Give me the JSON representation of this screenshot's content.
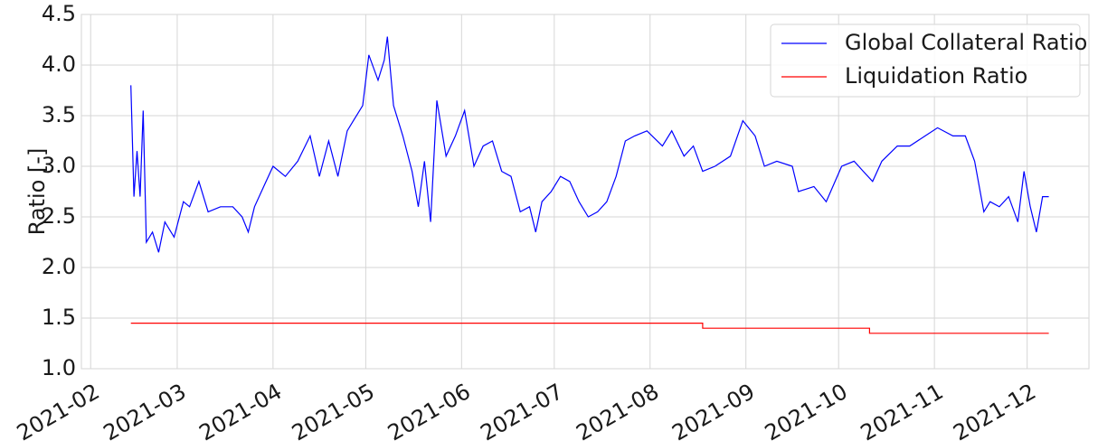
{
  "chart_data": {
    "type": "line",
    "ylabel": "Ratio [-]",
    "xlim": [
      "2021-01-29",
      "2021-12-21"
    ],
    "xticks": [
      "2021-02",
      "2021-03",
      "2021-04",
      "2021-05",
      "2021-06",
      "2021-07",
      "2021-08",
      "2021-09",
      "2021-10",
      "2021-11",
      "2021-12"
    ],
    "ylim": [
      1,
      4.5
    ],
    "yticks": [
      {
        "value": 1,
        "label": "1.0"
      },
      1.5,
      {
        "value": 2,
        "label": "2.0"
      },
      2.5,
      {
        "value": 3,
        "label": "3.0"
      },
      3.5,
      {
        "value": 4,
        "label": "4.0"
      },
      4.5
    ],
    "grid": true,
    "legend": "upper right",
    "series": [
      {
        "name": "Global Collateral Ratio",
        "color": "#0000ff",
        "x": [
          "2021-02-14",
          "2021-02-15",
          "2021-02-16",
          "2021-02-17",
          "2021-02-18",
          "2021-02-19",
          "2021-02-21",
          "2021-02-23",
          "2021-02-25",
          "2021-02-28",
          "2021-03-03",
          "2021-03-05",
          "2021-03-08",
          "2021-03-11",
          "2021-03-15",
          "2021-03-19",
          "2021-03-22",
          "2021-03-24",
          "2021-03-26",
          "2021-03-29",
          "2021-04-01",
          "2021-04-05",
          "2021-04-09",
          "2021-04-13",
          "2021-04-16",
          "2021-04-19",
          "2021-04-22",
          "2021-04-25",
          "2021-04-27",
          "2021-04-30",
          "2021-05-02",
          "2021-05-05",
          "2021-05-07",
          "2021-05-08",
          "2021-05-10",
          "2021-05-13",
          "2021-05-16",
          "2021-05-18",
          "2021-05-20",
          "2021-05-22",
          "2021-05-24",
          "2021-05-27",
          "2021-05-30",
          "2021-06-02",
          "2021-06-05",
          "2021-06-08",
          "2021-06-11",
          "2021-06-14",
          "2021-06-17",
          "2021-06-20",
          "2021-06-23",
          "2021-06-25",
          "2021-06-27",
          "2021-06-30",
          "2021-07-03",
          "2021-07-06",
          "2021-07-09",
          "2021-07-12",
          "2021-07-15",
          "2021-07-18",
          "2021-07-21",
          "2021-07-24",
          "2021-07-27",
          "2021-07-31",
          "2021-08-05",
          "2021-08-08",
          "2021-08-12",
          "2021-08-15",
          "2021-08-18",
          "2021-08-22",
          "2021-08-27",
          "2021-08-31",
          "2021-09-04",
          "2021-09-07",
          "2021-09-11",
          "2021-09-16",
          "2021-09-18",
          "2021-09-23",
          "2021-09-27",
          "2021-10-02",
          "2021-10-06",
          "2021-10-09",
          "2021-10-12",
          "2021-10-15",
          "2021-10-20",
          "2021-10-24",
          "2021-10-29",
          "2021-11-02",
          "2021-11-07",
          "2021-11-11",
          "2021-11-14",
          "2021-11-17",
          "2021-11-19",
          "2021-11-22",
          "2021-11-25",
          "2021-11-28",
          "2021-11-30",
          "2021-12-02",
          "2021-12-04",
          "2021-12-06",
          "2021-12-08"
        ],
        "values": [
          3.8,
          2.7,
          3.15,
          2.7,
          3.55,
          2.25,
          2.35,
          2.15,
          2.45,
          2.3,
          2.65,
          2.6,
          2.85,
          2.55,
          2.6,
          2.6,
          2.5,
          2.35,
          2.6,
          2.8,
          3.0,
          2.9,
          3.05,
          3.3,
          2.9,
          3.25,
          2.9,
          3.35,
          3.45,
          3.6,
          4.1,
          3.85,
          4.05,
          4.28,
          3.6,
          3.3,
          2.95,
          2.6,
          3.05,
          2.45,
          3.65,
          3.1,
          3.3,
          3.55,
          3.0,
          3.2,
          3.25,
          2.95,
          2.9,
          2.55,
          2.6,
          2.35,
          2.65,
          2.75,
          2.9,
          2.85,
          2.65,
          2.5,
          2.55,
          2.65,
          2.9,
          3.25,
          3.3,
          3.35,
          3.2,
          3.35,
          3.1,
          3.2,
          2.95,
          3.0,
          3.1,
          3.45,
          3.3,
          3.0,
          3.05,
          3.0,
          2.75,
          2.8,
          2.65,
          3.0,
          3.05,
          2.95,
          2.85,
          3.05,
          3.2,
          3.2,
          3.3,
          3.38,
          3.3,
          3.3,
          3.05,
          2.55,
          2.65,
          2.6,
          2.7,
          2.45,
          2.95,
          2.6,
          2.35,
          2.7,
          2.7
        ]
      },
      {
        "name": "Liquidation Ratio",
        "color": "#ff0000",
        "x": [
          "2021-02-14",
          "2021-08-18",
          "2021-08-18",
          "2021-10-11",
          "2021-10-11",
          "2021-12-08"
        ],
        "values": [
          1.45,
          1.45,
          1.4,
          1.4,
          1.35,
          1.35
        ]
      }
    ]
  }
}
